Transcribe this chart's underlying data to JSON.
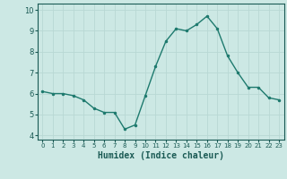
{
  "x": [
    0,
    1,
    2,
    3,
    4,
    5,
    6,
    7,
    8,
    9,
    10,
    11,
    12,
    13,
    14,
    15,
    16,
    17,
    18,
    19,
    20,
    21,
    22,
    23
  ],
  "y": [
    6.1,
    6.0,
    6.0,
    5.9,
    5.7,
    5.3,
    5.1,
    5.1,
    4.3,
    4.5,
    5.9,
    7.3,
    8.5,
    9.1,
    9.0,
    9.3,
    9.7,
    9.1,
    7.8,
    7.0,
    6.3,
    6.3,
    5.8,
    5.7
  ],
  "xlabel": "Humidex (Indice chaleur)",
  "ylabel": "",
  "ylim": [
    3.8,
    10.3
  ],
  "xlim": [
    -0.5,
    23.5
  ],
  "yticks": [
    4,
    5,
    6,
    7,
    8,
    9,
    10
  ],
  "xtick_labels": [
    "0",
    "1",
    "2",
    "3",
    "4",
    "5",
    "6",
    "7",
    "8",
    "9",
    "10",
    "11",
    "12",
    "13",
    "14",
    "15",
    "16",
    "17",
    "18",
    "19",
    "20",
    "21",
    "22",
    "23"
  ],
  "line_color": "#1e7a6e",
  "marker_color": "#1e7a6e",
  "bg_color": "#cce8e4",
  "grid_color": "#b8d8d4",
  "tick_color": "#1a5a54",
  "label_color": "#1a5a54"
}
